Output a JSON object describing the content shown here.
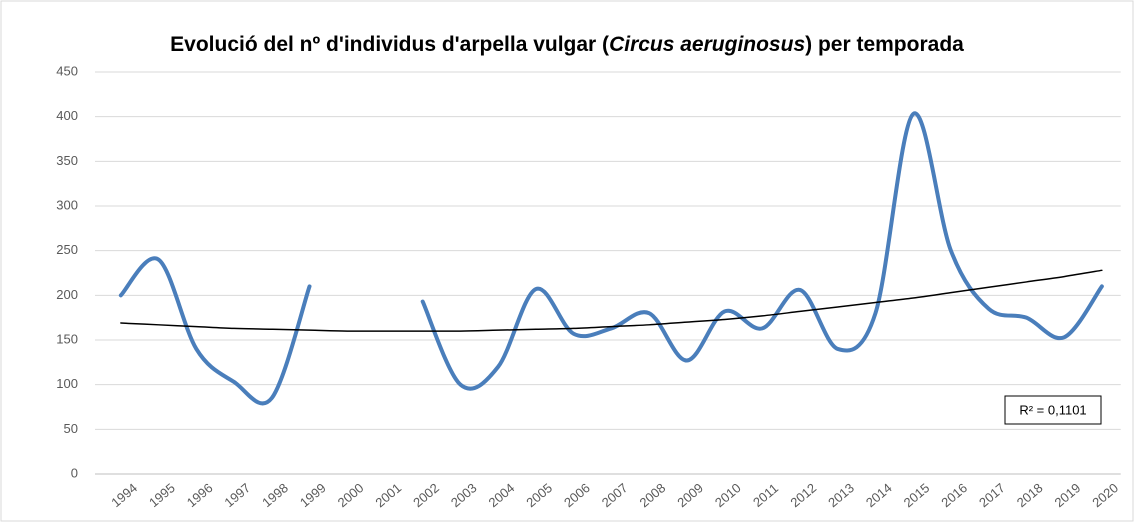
{
  "chart_data": {
    "type": "line",
    "title": [
      "Evolució del nº d'individus d'arpella vulgar (",
      "Circus aeruginosus",
      ")  per temporada"
    ],
    "categories": [
      "1994",
      "1995",
      "1996",
      "1997",
      "1998",
      "1999",
      "2000",
      "2001",
      "2002",
      "2003",
      "2004",
      "2005",
      "2006",
      "2007",
      "2008",
      "2009",
      "2010",
      "2011",
      "2012",
      "2013",
      "2014",
      "2015",
      "2016",
      "2017",
      "2018",
      "2019",
      "2020"
    ],
    "series": [
      {
        "color": "#4a7ebb",
        "values": [
          200,
          240,
          140,
          103,
          85,
          210,
          null,
          null,
          193,
          100,
          120,
          207,
          157,
          163,
          180,
          127,
          182,
          163,
          206,
          140,
          180,
          403,
          250,
          185,
          175,
          153,
          210
        ]
      }
    ],
    "trendline": {
      "color": "#000000",
      "values": [
        169,
        167,
        165,
        163,
        162,
        161,
        160,
        160,
        160,
        160,
        161,
        162,
        163,
        165,
        167,
        170,
        173,
        177,
        182,
        187,
        192,
        197,
        203,
        209,
        215,
        221,
        228
      ]
    },
    "annotation": "R² = 0,1101",
    "ylim": [
      0,
      450
    ],
    "yticks": [
      0,
      50,
      100,
      150,
      200,
      250,
      300,
      350,
      400,
      450
    ],
    "grid": true
  }
}
